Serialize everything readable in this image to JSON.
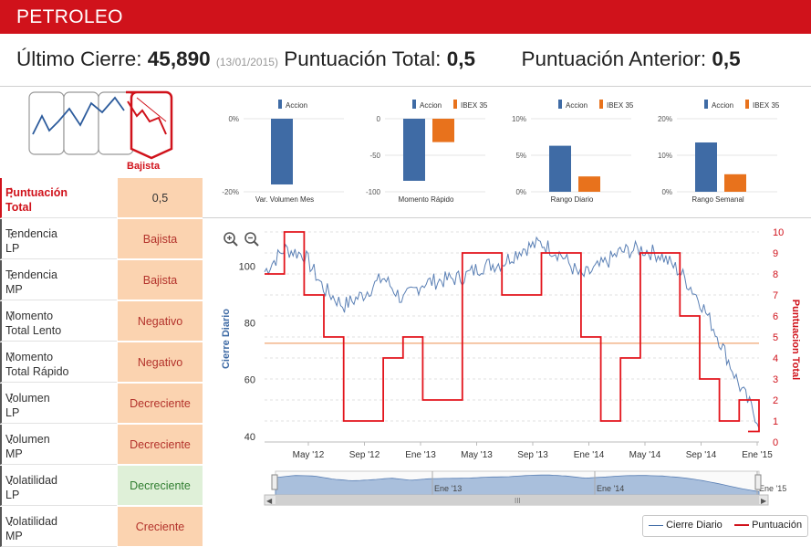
{
  "header": {
    "title": "PETROLEO"
  },
  "summary": {
    "last_close_label": "Último Cierre:",
    "last_close_value": "45,890",
    "last_close_date": "(13/01/2015)",
    "total_score_label": "Puntuación Total:",
    "total_score_value": "0,5",
    "previous_score_label": "Puntuación Anterior:",
    "previous_score_value": "0,5"
  },
  "trend_badge": {
    "label": "Bajista"
  },
  "indicators": [
    {
      "label": "Puntuación\nTotal",
      "value": "0,5",
      "tone": "total"
    },
    {
      "label": "Tendencia\nLP",
      "value": "Bajista",
      "tone": "neg"
    },
    {
      "label": "Tendencia\nMP",
      "value": "Bajista",
      "tone": "neg"
    },
    {
      "label": "Momento\nTotal Lento",
      "value": "Negativo",
      "tone": "neg"
    },
    {
      "label": "Momento\nTotal Rápido",
      "value": "Negativo",
      "tone": "neg"
    },
    {
      "label": "Volumen\nLP",
      "value": "Decreciente",
      "tone": "neg"
    },
    {
      "label": "Volumen\nMP",
      "value": "Decreciente",
      "tone": "neg"
    },
    {
      "label": "Volatilidad\nLP",
      "value": "Decreciente",
      "tone": "pos"
    },
    {
      "label": "Volatilidad\nMP",
      "value": "Creciente",
      "tone": "neg"
    }
  ],
  "colors": {
    "accent": "#d0121b",
    "accion": "#3f6ba5",
    "ibex": "#e8721c",
    "neg_bg": "#fbd3b0",
    "pos_bg": "#dff0d8"
  },
  "main_chart": {
    "y_left_label": "Cierre Diario",
    "y_right_label": "Puntuacion Total",
    "legend_close": "Cierre Diario",
    "legend_score": "Puntuación",
    "navigator_labels": [
      "Ene '13",
      "Ene '14",
      "Ene '15"
    ]
  },
  "chart_data": [
    {
      "type": "bar",
      "categories": [
        "Var. Volumen Mes"
      ],
      "series": [
        {
          "name": "Accion",
          "values": [
            -18
          ]
        }
      ],
      "ylim": [
        -20,
        0
      ],
      "ytick_labels": [
        "0%",
        "-20%"
      ],
      "ylabel": ""
    },
    {
      "type": "bar",
      "categories": [
        "Momento Rápido"
      ],
      "series": [
        {
          "name": "Accion",
          "values": [
            -85
          ]
        },
        {
          "name": "IBEX 35",
          "values": [
            -32
          ]
        }
      ],
      "ylim": [
        -100,
        0
      ],
      "ytick_labels": [
        "0",
        "-50",
        "-100"
      ]
    },
    {
      "type": "bar",
      "categories": [
        "Rango Diario"
      ],
      "series": [
        {
          "name": "Accion",
          "values": [
            6.3
          ]
        },
        {
          "name": "IBEX 35",
          "values": [
            2.1
          ]
        }
      ],
      "ylim": [
        0,
        10
      ],
      "ytick_labels": [
        "10%",
        "5%",
        "0%"
      ]
    },
    {
      "type": "bar",
      "categories": [
        "Rango Semanal"
      ],
      "series": [
        {
          "name": "Accion",
          "values": [
            13.5
          ]
        },
        {
          "name": "IBEX 35",
          "values": [
            4.8
          ]
        }
      ],
      "ylim": [
        0,
        20
      ],
      "ytick_labels": [
        "20%",
        "10%",
        "0%"
      ]
    },
    {
      "type": "line",
      "x_labels": [
        "May '12",
        "Sep '12",
        "Ene '13",
        "May '13",
        "Sep '13",
        "Ene '14",
        "May '14",
        "Sep '14",
        "Ene '15"
      ],
      "x": [
        0,
        0.04,
        0.08,
        0.12,
        0.16,
        0.2,
        0.24,
        0.28,
        0.32,
        0.36,
        0.4,
        0.44,
        0.48,
        0.52,
        0.56,
        0.6,
        0.64,
        0.68,
        0.72,
        0.76,
        0.8,
        0.84,
        0.88,
        0.92,
        0.96,
        1
      ],
      "y_left_ticks": [
        40,
        60,
        80,
        100
      ],
      "ylim_left": [
        38,
        112
      ],
      "y_right_ticks": [
        0,
        1,
        2,
        3,
        4,
        5,
        6,
        7,
        8,
        9,
        10
      ],
      "ylim_right": [
        0,
        10
      ],
      "threshold_right": 4.7,
      "series": [
        {
          "name": "Cierre Diario",
          "axis": "left",
          "values": [
            98,
            106,
            104,
            92,
            86,
            90,
            96,
            88,
            94,
            95,
            96,
            100,
            101,
            106,
            108,
            104,
            96,
            100,
            105,
            106,
            104,
            98,
            88,
            74,
            58,
            45
          ]
        },
        {
          "name": "Puntuación",
          "axis": "right",
          "values": [
            8,
            10,
            7,
            5,
            1,
            1,
            4,
            5,
            2,
            2,
            9,
            9,
            7,
            7,
            9,
            9,
            5,
            1,
            4,
            9,
            9,
            6,
            3,
            1,
            2,
            0.5
          ]
        }
      ]
    }
  ]
}
